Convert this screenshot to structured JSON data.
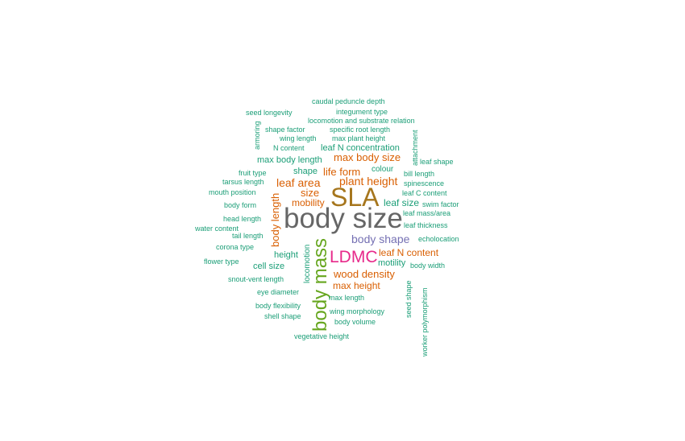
{
  "colors": {
    "teal": "#1b9e77",
    "orange": "#d95f02",
    "purple": "#7570b3",
    "magenta": "#e7298a",
    "green": "#66a61e",
    "gold": "#a6761d",
    "gray": "#666666"
  },
  "words": {
    "body_size": "body size",
    "sla": "SLA",
    "body_mass": "body mass",
    "ldmc": "LDMC",
    "body_shape": "body shape",
    "plant_height": "plant height",
    "leaf_area": "leaf area",
    "body_length": "body length",
    "wood_density": "wood density",
    "max_body_size": "max body size",
    "life_form": "life form",
    "size": "size",
    "mobility": "mobility",
    "leaf_n_content": "leaf N content",
    "max_height": "max height",
    "leaf_size": "leaf size",
    "max_body_length": "max body length",
    "leaf_n_concentration": "leaf N concentration",
    "shape": "shape",
    "height": "height",
    "cell_size": "cell size",
    "motility": "motility",
    "colour": "colour",
    "locomotion": "locomotion",
    "caudal_peduncle_depth": "caudal peduncle depth",
    "integument_type": "integument type",
    "seed_longevity": "seed longevity",
    "locomotion_and_substrate_relation": "locomotion and substrate relation",
    "shape_factor": "shape factor",
    "specific_root_length": "specific root length",
    "wing_length": "wing length",
    "max_plant_height": "max plant height",
    "n_content": "N content",
    "armoring": "armoring",
    "attachment": "attachment",
    "leaf_shape": "leaf shape",
    "fruit_type": "fruit type",
    "bill_length": "bill length",
    "tarsus_length": "tarsus length",
    "spinescence": "spinescence",
    "mouth_position": "mouth position",
    "leaf_c_content": "leaf C content",
    "body_form": "body form",
    "swim_factor": "swim factor",
    "leaf_mass_area": "leaf mass/area",
    "head_length": "head length",
    "leaf_thickness": "leaf thickness",
    "water_content": "water content",
    "tail_length": "tail length",
    "echolocation": "echolocation",
    "corona_type": "corona type",
    "flower_type": "flower type",
    "body_width": "body width",
    "snout_vent_length": "snout-vent length",
    "eye_diameter": "eye diameter",
    "max_length": "max length",
    "seed_shape": "seed shape",
    "body_flexibility": "body flexibility",
    "wing_morphology": "wing morphology",
    "shell_shape": "shell shape",
    "body_volume": "body volume",
    "worker_polymorphism": "worker polymorphism",
    "vegetative_height": "vegetative height"
  }
}
